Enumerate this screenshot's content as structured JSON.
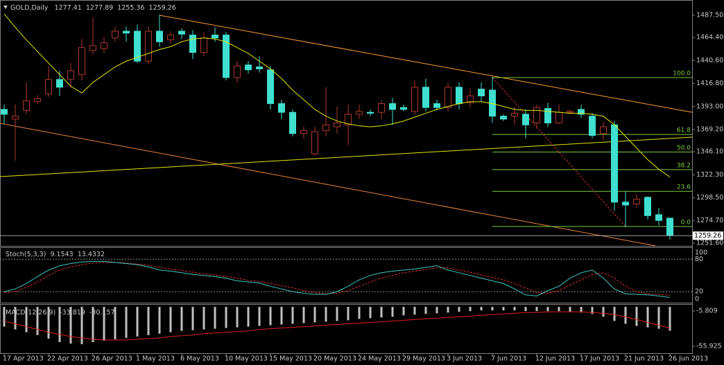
{
  "chart_data": {
    "type": "candlestick",
    "title": "GOLD,Daily",
    "categories": [
      "17 Apr 2013",
      null,
      null,
      null,
      "22 Apr 2013",
      null,
      null,
      null,
      "26 Apr 2013",
      null,
      null,
      null,
      "1 May 2013",
      null,
      null,
      null,
      "6 May 2013",
      null,
      null,
      null,
      "10 May 2013",
      null,
      null,
      null,
      "15 May 2013",
      null,
      null,
      null,
      "20 May 2013",
      null,
      null,
      null,
      "24 May 2013",
      null,
      null,
      null,
      "29 May 2013",
      null,
      null,
      null,
      "3 Jun 2013",
      null,
      null,
      null,
      "7 Jun 2013",
      null,
      null,
      null,
      "12 Jun 2013",
      null,
      null,
      null,
      "17 Jun 2013",
      null,
      null,
      null,
      "21 Jun 2013",
      null,
      null,
      null,
      "26 Jun 2013"
    ],
    "open": [
      1390,
      1380,
      1389,
      1398,
      1406,
      1421,
      1421,
      1426,
      1451,
      1453,
      1464,
      1471,
      1471,
      1440,
      1471,
      1462,
      1471,
      1467,
      1449,
      1467,
      1467,
      1423,
      1436,
      1434,
      1431,
      1396,
      1387,
      1365,
      1344,
      1368,
      1372,
      1374,
      1385,
      1387,
      1387,
      1396,
      1392,
      1388,
      1413,
      1396,
      1392,
      1413,
      1397,
      1411,
      1410,
      1383,
      1383,
      1385,
      1376,
      1391,
      1376,
      1387,
      1390,
      1383,
      1365,
      1374,
      1294,
      1292,
      1299,
      1281,
      1277.41
    ],
    "high": [
      1395,
      1395,
      1418,
      1405,
      1435,
      1430,
      1438,
      1463,
      1485,
      1465,
      1476,
      1476,
      1478,
      1476,
      1488,
      1471,
      1474,
      1472,
      1470,
      1475,
      1470,
      1440,
      1440,
      1445,
      1435,
      1400,
      1390,
      1372,
      1372,
      1413,
      1393,
      1395,
      1395,
      1390,
      1400,
      1402,
      1395,
      1420,
      1422,
      1400,
      1418,
      1418,
      1412,
      1418,
      1424,
      1385,
      1393,
      1390,
      1395,
      1397,
      1395,
      1390,
      1395,
      1386,
      1377,
      1378,
      1305,
      1302,
      1300,
      1288,
      1277.89
    ],
    "low": [
      1375,
      1337,
      1385,
      1396,
      1403,
      1404,
      1412,
      1420,
      1447,
      1448,
      1460,
      1460,
      1438,
      1437,
      1455,
      1458,
      1463,
      1442,
      1445,
      1460,
      1420,
      1418,
      1427,
      1428,
      1390,
      1380,
      1362,
      1360,
      1342,
      1362,
      1365,
      1353,
      1380,
      1383,
      1380,
      1374,
      1388,
      1385,
      1388,
      1389,
      1388,
      1390,
      1392,
      1398,
      1376,
      1378,
      1374,
      1360,
      1370,
      1372,
      1375,
      1385,
      1381,
      1360,
      1358,
      1285,
      1268,
      1288,
      1276,
      1270,
      1255.36
    ],
    "close": [
      1385,
      1383,
      1399,
      1401,
      1421,
      1413,
      1430,
      1454,
      1456,
      1459,
      1471,
      1469,
      1440,
      1471,
      1460,
      1467,
      1468,
      1449,
      1464,
      1464,
      1423,
      1435,
      1431,
      1432,
      1396,
      1387,
      1365,
      1368,
      1367,
      1374,
      1376,
      1385,
      1388,
      1386,
      1396,
      1390,
      1390,
      1413,
      1392,
      1392,
      1413,
      1396,
      1404,
      1404,
      1383,
      1380,
      1386,
      1374,
      1392,
      1376,
      1387,
      1388,
      1385,
      1363,
      1372,
      1294,
      1291,
      1297,
      1280,
      1275,
      1259.26
    ],
    "up_color": "#b03a2e",
    "down_color": "#40e0d0",
    "ma": {
      "color": "#e6e600",
      "values": [
        1489,
        1475,
        1462,
        1450,
        1438,
        1426,
        1414,
        1407,
        1418,
        1426,
        1434,
        1440,
        1444,
        1448,
        1452,
        1455,
        1460,
        1463,
        1464,
        1463,
        1460,
        1454,
        1448,
        1440,
        1432,
        1422,
        1410,
        1400,
        1390,
        1383,
        1378,
        1375,
        1373,
        1372,
        1373,
        1375,
        1378,
        1382,
        1386,
        1390,
        1393,
        1396,
        1398,
        1398,
        1396,
        1393,
        1390,
        1389,
        1389,
        1388,
        1387,
        1386,
        1386,
        1385,
        1383,
        1374,
        1362,
        1350,
        1338,
        1328,
        1320
      ]
    },
    "trendlines": [
      {
        "color": "#ff9933",
        "points": [
          [
            14,
            1487.5
          ],
          [
            62,
            1387
          ]
        ]
      },
      {
        "color": "#e8823a",
        "points": [
          [
            -0.375,
            1375.6
          ],
          [
            58.7,
            1248.7
          ]
        ]
      },
      {
        "color": "#e6e600",
        "points": [
          [
            -0.375,
            1320.4
          ],
          [
            62,
            1361.3
          ]
        ]
      }
    ],
    "fib": {
      "high": 1423,
      "low": 1268.8,
      "bars": [
        44,
        56
      ],
      "color": "#7ccd3c",
      "line_color": "#d03030",
      "levels": [
        {
          "value": 100,
          "label": "100.0"
        },
        {
          "value": 61.8,
          "label": "61.8"
        },
        {
          "value": 50,
          "label": "50.0"
        },
        {
          "value": 38.2,
          "label": "38.2"
        },
        {
          "value": 23.6,
          "label": "23.6"
        },
        {
          "value": 0,
          "label": "0.0"
        }
      ]
    },
    "ylim": [
      1248.7,
      1503.3
    ],
    "yticks": [
      {
        "value": 1487.5,
        "label": "1487.50"
      },
      {
        "value": 1464.4,
        "label": "1464.40"
      },
      {
        "value": 1440.6,
        "label": "1440.60"
      },
      {
        "value": 1416.8,
        "label": "1416.80"
      },
      {
        "value": 1393,
        "label": "1393.00"
      },
      {
        "value": 1369.2,
        "label": "1369.20"
      },
      {
        "value": 1346.1,
        "label": "1346.10"
      },
      {
        "value": 1322.3,
        "label": "1322.30"
      },
      {
        "value": 1298.5,
        "label": "1298.50"
      },
      {
        "value": 1274.7,
        "label": "1274.70"
      },
      {
        "value": 1251.6,
        "label": "1251.60"
      }
    ],
    "stochastic": {
      "title": "Stoch(5,3,3)",
      "ylim": [
        0,
        100
      ],
      "yticks": [
        100,
        80,
        20,
        0
      ],
      "main": {
        "color": "#40c8c8",
        "values": [
          20,
          25,
          35,
          48,
          60,
          68,
          72,
          75,
          76,
          76,
          74,
          72,
          70,
          66,
          60,
          58,
          55,
          52,
          50,
          48,
          45,
          40,
          38,
          36,
          30,
          25,
          20,
          17,
          15,
          15,
          20,
          30,
          42,
          50,
          55,
          58,
          60,
          62,
          65,
          68,
          60,
          55,
          50,
          45,
          40,
          35,
          25,
          14,
          12,
          22,
          30,
          45,
          55,
          60,
          45,
          25,
          16,
          15,
          14,
          12,
          9.1543
        ]
      },
      "signal": {
        "color": "#e03030",
        "values": [
          18,
          20,
          28,
          38,
          50,
          60,
          66,
          70,
          73,
          74,
          74,
          73,
          71,
          69,
          65,
          62,
          59,
          56,
          53,
          51,
          48,
          45,
          41,
          39,
          35,
          31,
          27,
          22,
          18,
          16,
          17,
          22,
          30,
          38,
          45,
          50,
          55,
          58,
          61,
          64,
          64,
          60,
          56,
          51,
          46,
          42,
          35,
          27,
          18,
          17,
          22,
          32,
          42,
          52,
          55,
          45,
          30,
          20,
          16,
          15,
          13.4332
        ]
      }
    },
    "macd": {
      "title": "MACD(12,26,9)",
      "ylim": [
        -65.75,
        2.05
      ],
      "yticks": [
        -5.809,
        -55.925
      ],
      "main": {
        "color": "#c0c0c0",
        "values": [
          -28,
          -32,
          -36,
          -40,
          -45,
          -50,
          -52,
          -53,
          -50,
          -48,
          -46,
          -44,
          -42,
          -40,
          -38,
          -36,
          -34,
          -33,
          -32,
          -31,
          -30,
          -29,
          -28,
          -27,
          -26,
          -25,
          -24,
          -23,
          -22,
          -21,
          -20,
          -19,
          -17,
          -16,
          -15,
          -14,
          -12,
          -11,
          -10,
          -9,
          -8,
          -7,
          -6,
          -5,
          -5,
          -5,
          -5,
          -6,
          -6,
          -6,
          -6,
          -7,
          -8,
          -10,
          -14,
          -20,
          -24,
          -27,
          -29,
          -31,
          -33.819
        ]
      },
      "signal": {
        "color": "#e02020",
        "values": [
          -20,
          -24,
          -28,
          -32,
          -36,
          -39,
          -42,
          -44,
          -46,
          -47,
          -47,
          -47,
          -46,
          -45,
          -44,
          -42,
          -41,
          -40,
          -38,
          -37,
          -36,
          -35,
          -34,
          -32,
          -31,
          -30,
          -29,
          -28,
          -27,
          -26,
          -25,
          -24,
          -23,
          -22,
          -21,
          -20,
          -19,
          -18,
          -17,
          -16,
          -15,
          -14,
          -13,
          -12,
          -11,
          -10,
          -9,
          -8,
          -8,
          -7,
          -7,
          -7,
          -7,
          -8,
          -9,
          -11,
          -14,
          -18,
          -22,
          -26,
          -30.157
        ]
      }
    }
  }
}
